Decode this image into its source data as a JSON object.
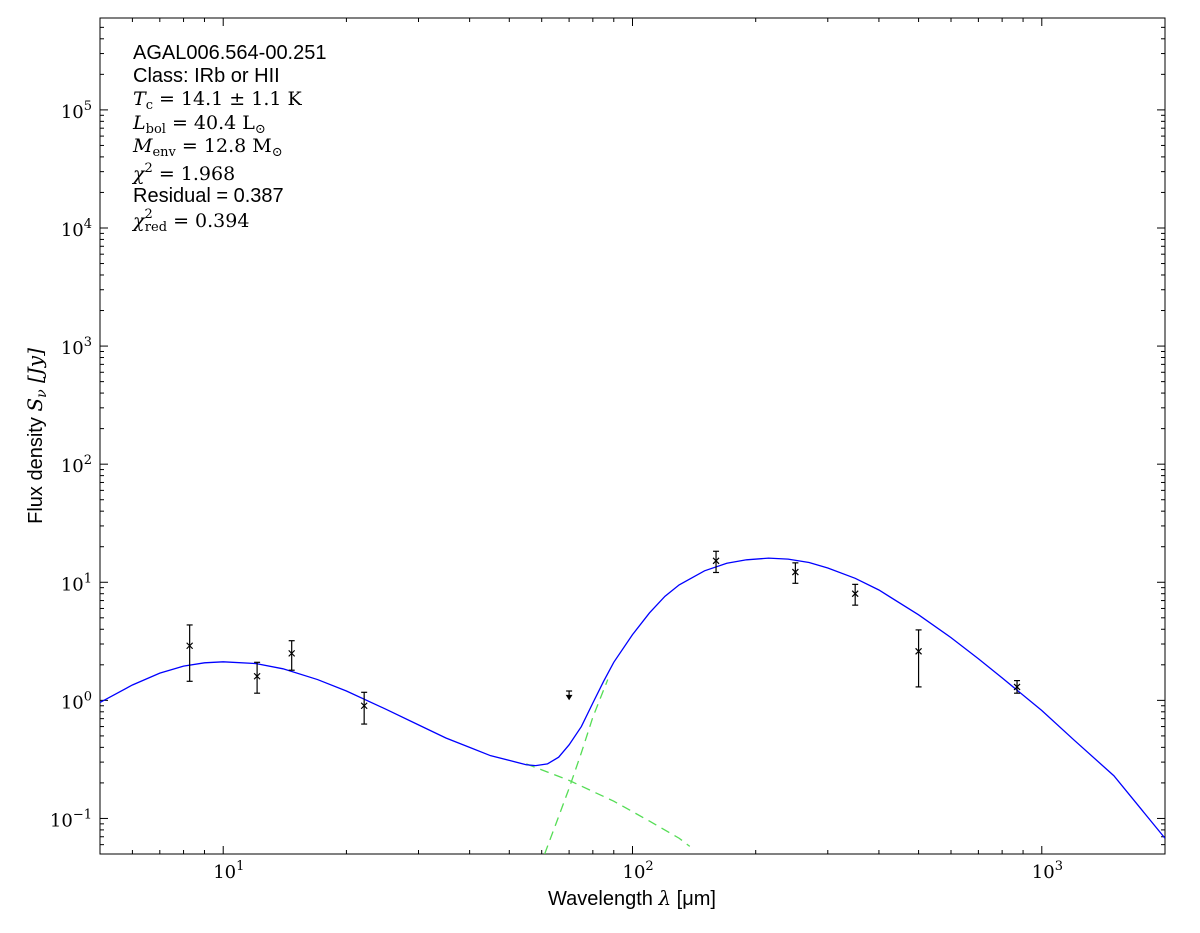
{
  "chart_data": {
    "type": "scatter",
    "x_scale": "log",
    "y_scale": "log",
    "xlim": [
      5,
      2000
    ],
    "ylim": [
      0.05,
      600000
    ],
    "grid": false,
    "xlabel": {
      "prefix": "Wavelength ",
      "symbol": "λ",
      "units": " [μm]"
    },
    "ylabel": {
      "prefix": "Flux density ",
      "symbol": "S",
      "sub": "ν",
      "units": " [Jy]"
    },
    "x_ticks": [
      {
        "value": 10,
        "base": "10",
        "exp": "1"
      },
      {
        "value": 100,
        "base": "10",
        "exp": "2"
      },
      {
        "value": 1000,
        "base": "10",
        "exp": "3"
      }
    ],
    "y_ticks": [
      {
        "value": 0.1,
        "base": "10",
        "exp": "−1"
      },
      {
        "value": 1,
        "base": "10",
        "exp": "0"
      },
      {
        "value": 10,
        "base": "10",
        "exp": "1"
      },
      {
        "value": 100,
        "base": "10",
        "exp": "2"
      },
      {
        "value": 1000,
        "base": "10",
        "exp": "3"
      },
      {
        "value": 10000,
        "base": "10",
        "exp": "4"
      },
      {
        "value": 100000,
        "base": "10",
        "exp": "5"
      }
    ],
    "annotations": {
      "source": "AGAL006.564-00.251",
      "class": "Class: IRb or HII",
      "tc": {
        "sym": "T",
        "sub": "c",
        "text": " = 14.1 ± 1.1 K"
      },
      "lbol": {
        "sym": "L",
        "sub": "bol",
        "text": " = 40.4 L",
        "tail": "⊙"
      },
      "menv": {
        "sym": "M",
        "sub": "env",
        "text": " = 12.8 M",
        "tail": "⊙"
      },
      "chi2": {
        "sym": "χ",
        "sup": "2",
        "text": " = 1.968"
      },
      "residual": "Residual = 0.387",
      "chi2red": {
        "sym": "χ",
        "sup": "2",
        "sub": "red",
        "text": " = 0.394"
      }
    },
    "series": [
      {
        "kind": "measurements",
        "color": "#000000",
        "points": [
          {
            "x": 8.28,
            "y": 2.9,
            "ylo": 1.45,
            "yhi": 4.35
          },
          {
            "x": 12.1,
            "y": 1.6,
            "ylo": 1.15,
            "yhi": 2.1
          },
          {
            "x": 14.7,
            "y": 2.5,
            "ylo": 1.8,
            "yhi": 3.2
          },
          {
            "x": 22.1,
            "y": 0.9,
            "ylo": 0.63,
            "yhi": 1.17
          },
          {
            "x": 160,
            "y": 15.2,
            "ylo": 12.1,
            "yhi": 18.3
          },
          {
            "x": 250,
            "y": 12.2,
            "ylo": 9.8,
            "yhi": 14.6
          },
          {
            "x": 350,
            "y": 8.0,
            "ylo": 6.4,
            "yhi": 9.6
          },
          {
            "x": 500,
            "y": 2.6,
            "ylo": 1.3,
            "yhi": 3.95
          },
          {
            "x": 870,
            "y": 1.3,
            "ylo": 1.15,
            "yhi": 1.47
          }
        ]
      },
      {
        "kind": "upper-limit",
        "color": "#000000",
        "points": [
          {
            "x": 70,
            "y": 1.2,
            "ylo": 1.02
          }
        ]
      },
      {
        "kind": "total-model",
        "color": "#0000ff",
        "x": [
          5,
          6,
          7,
          8,
          9,
          10,
          12,
          14,
          17,
          20,
          25,
          30,
          35,
          40,
          45,
          50,
          55,
          58,
          62,
          66,
          70,
          75,
          80,
          85,
          90,
          100,
          110,
          120,
          130,
          150,
          170,
          190,
          215,
          240,
          270,
          300,
          350,
          400,
          500,
          600,
          700,
          800,
          1000,
          1200,
          1500,
          2000
        ],
        "y": [
          0.96,
          1.35,
          1.7,
          1.95,
          2.08,
          2.12,
          2.05,
          1.85,
          1.5,
          1.2,
          0.84,
          0.62,
          0.48,
          0.4,
          0.34,
          0.31,
          0.285,
          0.28,
          0.29,
          0.33,
          0.42,
          0.6,
          0.95,
          1.45,
          2.1,
          3.6,
          5.5,
          7.6,
          9.5,
          12.5,
          14.5,
          15.5,
          16.0,
          15.7,
          14.7,
          13.2,
          10.8,
          8.6,
          5.3,
          3.4,
          2.25,
          1.55,
          0.82,
          0.46,
          0.23,
          0.068
        ]
      },
      {
        "kind": "warm-component",
        "color": "#55dd55",
        "x": [
          55,
          70,
          90,
          110,
          130,
          138
        ],
        "y": [
          0.29,
          0.21,
          0.14,
          0.095,
          0.068,
          0.058
        ]
      },
      {
        "kind": "cold-component",
        "color": "#55dd55",
        "x": [
          61,
          65,
          70,
          75,
          80,
          87
        ],
        "y": [
          0.05,
          0.09,
          0.18,
          0.36,
          0.72,
          1.5
        ]
      }
    ]
  }
}
